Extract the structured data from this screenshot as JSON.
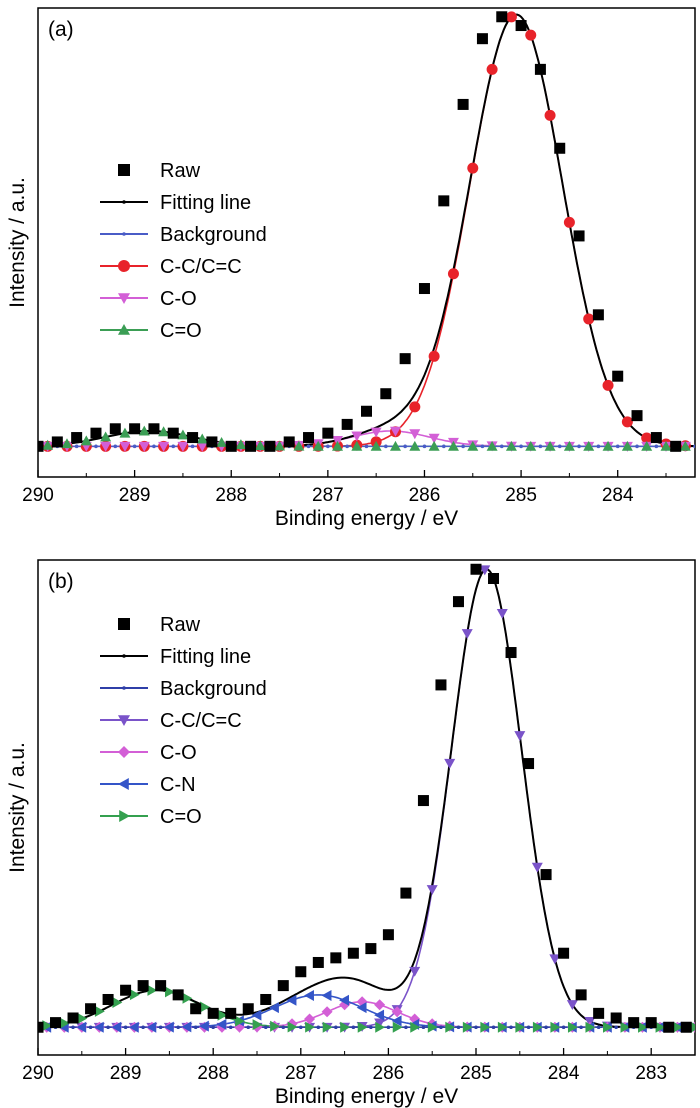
{
  "chart_data": [
    {
      "type": "line",
      "panel_label": "(a)",
      "xlabel": "Binding energy / eV",
      "ylabel": "Intensity / a.u.",
      "xlim": [
        290,
        283.2
      ],
      "x_reversed": true,
      "ylim": [
        -0.05,
        1.02
      ],
      "xticks": [
        "290",
        "289",
        "288",
        "287",
        "286",
        "285",
        "284"
      ],
      "legend": [
        "Raw",
        "Fitting line",
        "Background",
        "C-C/C=C",
        "C-O",
        "C=O"
      ],
      "legend_position": "middle-left",
      "series": [
        {
          "name": "Raw",
          "color": "#000000",
          "marker": "square",
          "x": [
            290.0,
            289.8,
            289.6,
            289.4,
            289.2,
            289.0,
            288.8,
            288.6,
            288.4,
            288.2,
            288.0,
            287.8,
            287.6,
            287.4,
            287.2,
            287.0,
            286.8,
            286.6,
            286.4,
            286.2,
            286.0,
            285.8,
            285.6,
            285.4,
            285.2,
            285.0,
            284.8,
            284.6,
            284.4,
            284.2,
            284.0,
            283.8,
            283.6,
            283.4
          ],
          "y": [
            0.02,
            0.03,
            0.04,
            0.05,
            0.06,
            0.06,
            0.06,
            0.05,
            0.04,
            0.03,
            0.02,
            0.02,
            0.02,
            0.03,
            0.04,
            0.05,
            0.07,
            0.1,
            0.14,
            0.22,
            0.38,
            0.58,
            0.8,
            0.95,
            1.0,
            0.98,
            0.88,
            0.7,
            0.5,
            0.32,
            0.18,
            0.09,
            0.04,
            0.02
          ]
        },
        {
          "name": "Fitting line",
          "color": "#000000",
          "marker": "dot"
        },
        {
          "name": "Background",
          "color": "#4a5cc7",
          "marker": "dot",
          "y_const": 0.02
        },
        {
          "name": "C-C/C=C",
          "color": "#e8232a",
          "marker": "circle",
          "center": 285.05,
          "sigma": 0.48,
          "height": 0.985
        },
        {
          "name": "C-O",
          "color": "#d35fd6",
          "marker": "triangle-down",
          "center": 286.35,
          "sigma": 0.4,
          "height": 0.035
        },
        {
          "name": "C=O",
          "color": "#3b9e55",
          "marker": "triangle-up",
          "center": 288.85,
          "sigma": 0.45,
          "height": 0.035
        }
      ]
    },
    {
      "type": "line",
      "panel_label": "(b)",
      "xlabel": "Binding energy / eV",
      "ylabel": "Intensity / a.u.",
      "xlim": [
        290,
        282.5
      ],
      "x_reversed": true,
      "ylim": [
        -0.05,
        1.02
      ],
      "xticks": [
        "290",
        "289",
        "288",
        "287",
        "286",
        "285",
        "284",
        "283"
      ],
      "legend": [
        "Raw",
        "Fitting line",
        "Background",
        "C-C/C=C",
        "C-O",
        "C-N",
        "C=O"
      ],
      "legend_position": "middle-left",
      "series": [
        {
          "name": "Raw",
          "color": "#000000",
          "marker": "square",
          "x": [
            290.0,
            289.8,
            289.6,
            289.4,
            289.2,
            289.0,
            288.8,
            288.6,
            288.4,
            288.2,
            288.0,
            287.8,
            287.6,
            287.4,
            287.2,
            287.0,
            286.8,
            286.6,
            286.4,
            286.2,
            286.0,
            285.8,
            285.6,
            285.4,
            285.2,
            285.0,
            284.8,
            284.6,
            284.4,
            284.2,
            284.0,
            283.8,
            283.6,
            283.4,
            283.2,
            283.0,
            282.8,
            282.6
          ],
          "y": [
            0.01,
            0.02,
            0.03,
            0.05,
            0.07,
            0.09,
            0.1,
            0.1,
            0.08,
            0.05,
            0.04,
            0.04,
            0.05,
            0.07,
            0.1,
            0.13,
            0.15,
            0.16,
            0.17,
            0.18,
            0.21,
            0.3,
            0.5,
            0.75,
            0.93,
            1.0,
            0.98,
            0.82,
            0.58,
            0.34,
            0.17,
            0.08,
            0.04,
            0.03,
            0.02,
            0.02,
            0.01,
            0.01
          ]
        },
        {
          "name": "Fitting line",
          "color": "#000000",
          "marker": "dot"
        },
        {
          "name": "Background",
          "color": "#2f3fa8",
          "marker": "dot",
          "y_const": 0.01
        },
        {
          "name": "C-C/C=C",
          "color": "#7a53c9",
          "marker": "triangle-down",
          "center": 284.88,
          "sigma": 0.4,
          "height": 0.99
        },
        {
          "name": "C-O",
          "color": "#d35fd6",
          "marker": "diamond",
          "center": 286.3,
          "sigma": 0.4,
          "height": 0.055
        },
        {
          "name": "C-N",
          "color": "#3455c8",
          "marker": "triangle-left",
          "center": 286.8,
          "sigma": 0.5,
          "height": 0.07
        },
        {
          "name": "C=O",
          "color": "#34a04f",
          "marker": "triangle-right",
          "center": 288.65,
          "sigma": 0.5,
          "height": 0.08
        }
      ]
    }
  ]
}
